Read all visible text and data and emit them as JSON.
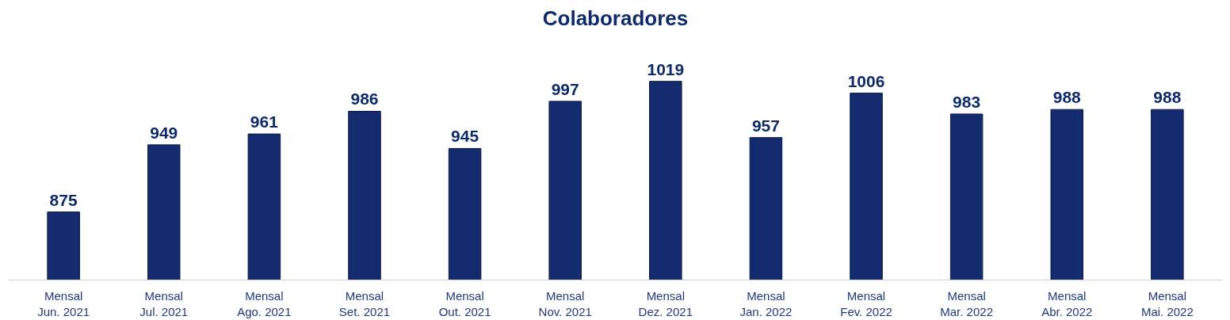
{
  "chart_data": {
    "type": "bar",
    "title": "Colaboradores",
    "categories": [
      "Mensal\nJun. 2021",
      "Mensal\nJul. 2021",
      "Mensal\nAgo. 2021",
      "Mensal\nSet. 2021",
      "Mensal\nOut. 2021",
      "Mensal\nNov. 2021",
      "Mensal\nDez. 2021",
      "Mensal\nJan. 2022",
      "Mensal\nFev. 2022",
      "Mensal\nMar. 2022",
      "Mensal\nAbr. 2022",
      "Mensal\nMai. 2022"
    ],
    "values": [
      875,
      949,
      961,
      986,
      945,
      997,
      1019,
      957,
      1006,
      983,
      988,
      988
    ],
    "color": "#142b6f",
    "ylim": [
      800,
      1019
    ],
    "data_labels": true,
    "grid": false,
    "tick_labels": "x"
  }
}
